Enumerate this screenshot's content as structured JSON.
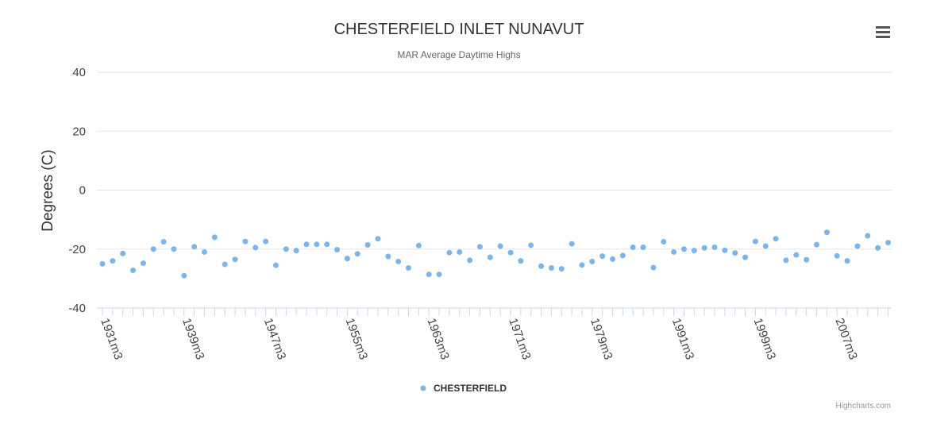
{
  "chart_data": {
    "type": "scatter",
    "title": "CHESTERFIELD INLET NUNAVUT",
    "subtitle": "MAR Average Daytime Highs",
    "ylabel": "Degrees (C)",
    "ylim": [
      -40,
      40
    ],
    "yticks": [
      40,
      20,
      0,
      -20,
      -40
    ],
    "grid": true,
    "legend_position": "bottom-center",
    "start_year": 1931,
    "x_tick_labels": [
      "1931m3",
      "1939m3",
      "1947m3",
      "1955m3",
      "1963m3",
      "1971m3",
      "1979m3",
      "1991m3",
      "1999m3",
      "2007m3"
    ],
    "x_tick_label_offsets": [
      0,
      8,
      16,
      24,
      32,
      40,
      48,
      56,
      64,
      72
    ],
    "series": [
      {
        "name": "CHESTERFIELD",
        "color": "#7cb5ec",
        "values": [
          -25.0,
          -24.0,
          -21.5,
          -27.2,
          -24.8,
          -20.0,
          -17.5,
          -20.0,
          -29.0,
          -19.2,
          -21.0,
          -16.0,
          -25.2,
          -23.5,
          -17.4,
          -19.5,
          -17.4,
          -25.5,
          -20.0,
          -20.5,
          -18.4,
          -18.4,
          -18.4,
          -20.2,
          -23.2,
          -21.6,
          -18.6,
          -16.5,
          -22.5,
          -24.2,
          -26.4,
          -18.8,
          -28.6,
          -28.6,
          -21.2,
          -21.0,
          -23.8,
          -19.2,
          -22.8,
          -19.0,
          -21.2,
          -24.0,
          -18.7,
          -25.8,
          -26.4,
          -26.7,
          -18.2,
          -25.4,
          -24.2,
          -22.4,
          -23.4,
          -22.2,
          -19.4,
          -19.4,
          -26.3,
          -17.5,
          -21.0,
          -20.0,
          -20.5,
          -19.6,
          -19.4,
          -20.4,
          -21.3,
          -22.8,
          -17.4,
          -19.0,
          -16.5,
          -23.8,
          -22.0,
          -23.6,
          -18.5,
          -14.3,
          -22.3,
          -24.0,
          -19.0,
          -15.5,
          -19.6,
          -17.8
        ]
      }
    ]
  },
  "menu_icon": "hamburger-menu-icon",
  "credit": "Highcharts.com"
}
